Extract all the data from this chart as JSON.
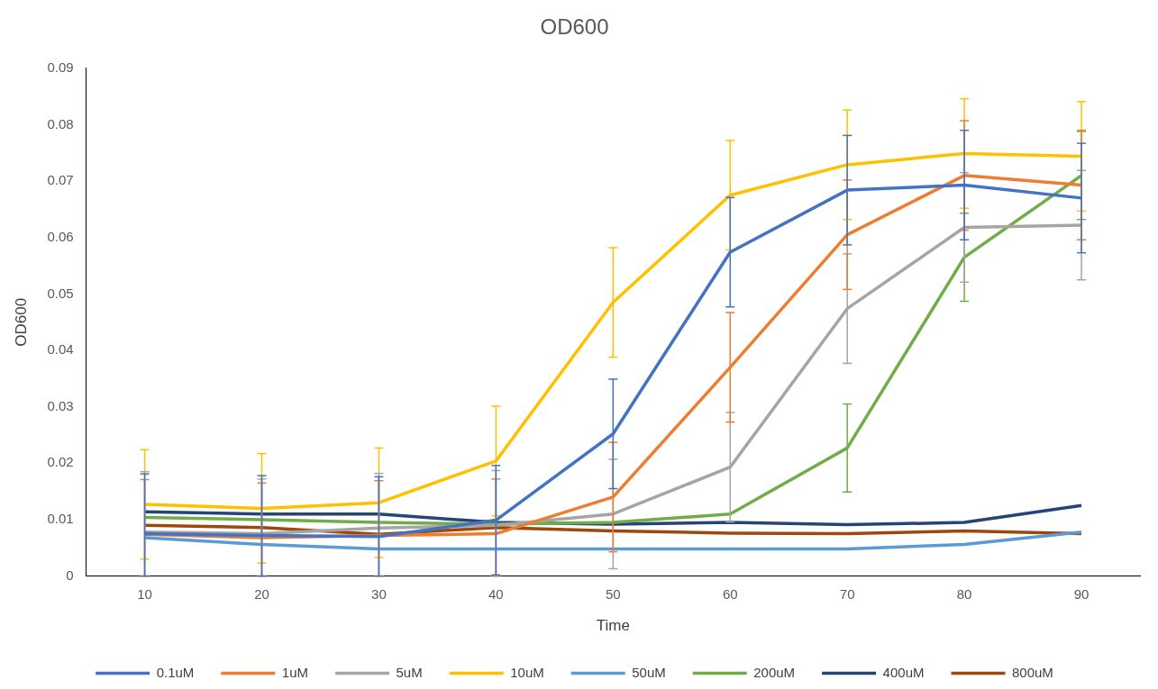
{
  "chart_data": {
    "type": "line",
    "title": "OD600",
    "xlabel": "Time",
    "ylabel": "OD600",
    "categories": [
      "10",
      "20",
      "30",
      "40",
      "50",
      "60",
      "70",
      "80",
      "90"
    ],
    "ylim": [
      0,
      0.09
    ],
    "yticks": [
      0,
      0.01,
      0.02,
      0.03,
      0.04,
      0.05,
      0.06,
      0.07,
      0.08,
      0.09
    ],
    "legend": "bottom",
    "marker": "none",
    "line_style": "solid",
    "series": [
      {
        "name": "0.1uM",
        "color": "#4472c4",
        "values": [
          0.0075,
          0.0072,
          0.007,
          0.0099,
          0.0252,
          0.0574,
          0.0684,
          0.0693,
          0.067
        ],
        "errors": [
          [
            0,
            0.0181
          ],
          [
            0,
            0.0178
          ],
          [
            0,
            0.0176
          ],
          0.0097,
          0.0097,
          0.0097,
          0.0097,
          0.0097,
          0.0097
        ]
      },
      {
        "name": "1uM",
        "color": "#ed7d31",
        "values": [
          0.0074,
          0.0068,
          0.0072,
          0.0075,
          0.014,
          0.037,
          0.0605,
          0.071,
          0.0693
        ],
        "errors": [
          [
            0,
            0.0171
          ],
          [
            0,
            0.0165
          ],
          [
            0,
            0.0169
          ],
          [
            0,
            0.0172
          ],
          0.0097,
          0.0097,
          0.0097,
          0.0097,
          0.0097
        ]
      },
      {
        "name": "5uM",
        "color": "#a5a5a5",
        "values": [
          0.0078,
          0.0075,
          0.0085,
          0.009,
          0.011,
          0.0193,
          0.0474,
          0.0618,
          0.0622
        ],
        "errors": [
          [
            0,
            0.0185
          ],
          [
            0,
            0.0172
          ],
          [
            0,
            0.0182
          ],
          [
            0,
            0.0187
          ],
          0.0097,
          0.0097,
          0.0097,
          0.0097,
          0.0097
        ]
      },
      {
        "name": "10uM",
        "color": "#ffc000",
        "values": [
          0.0127,
          0.012,
          0.013,
          0.0204,
          0.0485,
          0.0675,
          0.0729,
          0.0749,
          0.0744
        ],
        "errors": [
          0.0097,
          0.0097,
          0.0097,
          0.0097,
          0.0097,
          0.0097,
          0.0097,
          0.0097,
          0.0097
        ]
      },
      {
        "name": "50uM",
        "color": "#5b9bd5",
        "values": [
          0.0068,
          0.0056,
          0.0048,
          0.0048,
          0.0048,
          0.0048,
          0.0048,
          0.0056,
          0.0078
        ]
      },
      {
        "name": "200uM",
        "color": "#70ad47",
        "values": [
          0.0104,
          0.01,
          0.0095,
          0.0092,
          0.0095,
          0.011,
          0.0227,
          0.0565,
          0.071
        ],
        "errors": [
          null,
          null,
          null,
          null,
          null,
          null,
          0.0078,
          0.0078,
          0.0078
        ]
      },
      {
        "name": "400uM",
        "color": "#264478",
        "values": [
          0.0114,
          0.011,
          0.011,
          0.0095,
          0.0092,
          0.0095,
          0.0091,
          0.0095,
          0.0125
        ]
      },
      {
        "name": "800uM",
        "color": "#9e480e",
        "values": [
          0.009,
          0.0086,
          0.0074,
          0.0086,
          0.008,
          0.0076,
          0.0075,
          0.008,
          0.0075
        ]
      }
    ]
  }
}
